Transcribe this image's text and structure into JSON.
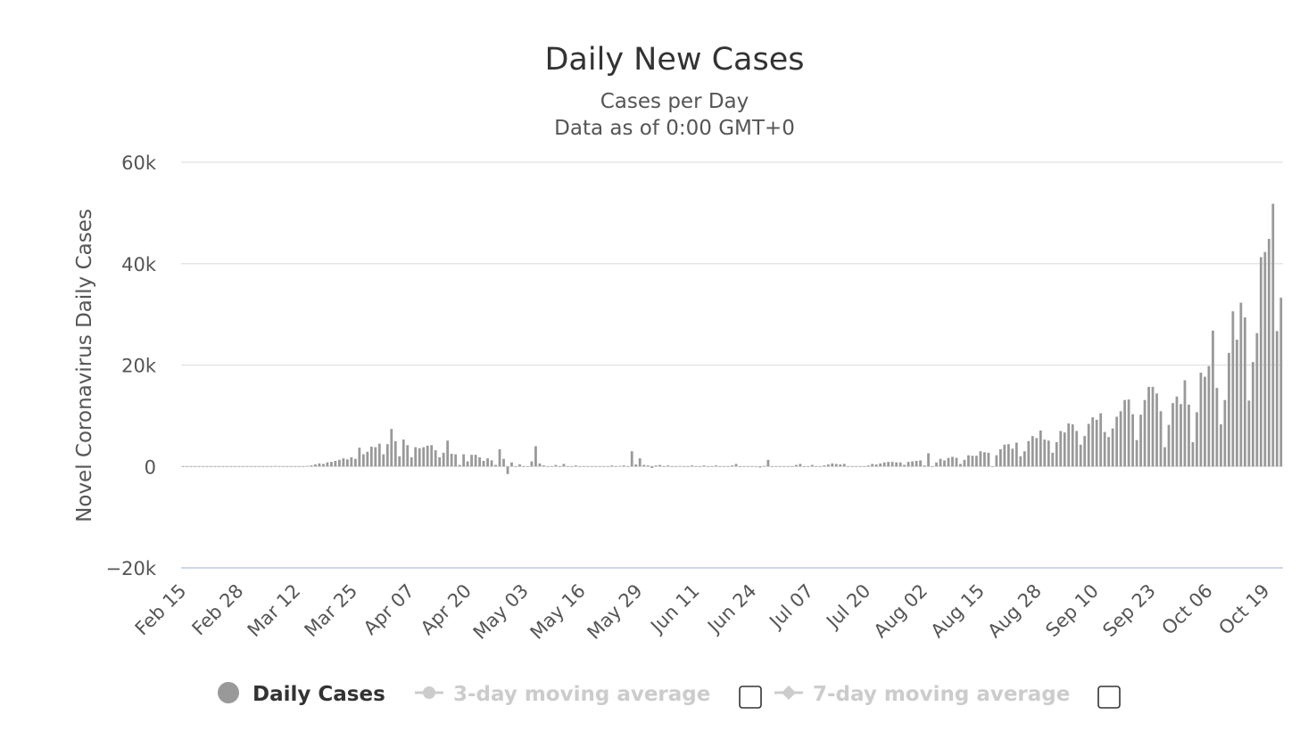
{
  "colors": {
    "bar": "#999999",
    "grid": "#e6e6e6",
    "axis_line": "#ccd6eb",
    "legend_active": "#333333",
    "legend_inactive": "#cccccc"
  },
  "chart_data": {
    "type": "bar",
    "title": "Daily New Cases",
    "subtitle_lines": [
      "Cases per Day",
      "Data as of 0:00 GMT+0"
    ],
    "xlabel": "",
    "ylabel": "Novel Coronavirus Daily Cases",
    "ylim": [
      -20000,
      60000
    ],
    "yticks": [
      -20000,
      0,
      20000,
      40000,
      60000
    ],
    "ytick_labels": [
      "−20k",
      "0",
      "20k",
      "40k",
      "60k"
    ],
    "xtick_labels": [
      "Feb 15",
      "Feb 28",
      "Mar 12",
      "Mar 25",
      "Apr 07",
      "Apr 20",
      "May 03",
      "May 16",
      "May 29",
      "Jun 11",
      "Jun 24",
      "Jul 07",
      "Jul 20",
      "Aug 02",
      "Aug 15",
      "Aug 28",
      "Sep 10",
      "Sep 23",
      "Oct 06",
      "Oct 19"
    ],
    "x_start": "Feb 15",
    "x_end": "Oct 27",
    "grid": true,
    "legend_position": "bottom",
    "legend": [
      {
        "label": "Daily Cases",
        "active": true,
        "marker": "circle"
      },
      {
        "label": "3-day moving average",
        "active": false,
        "marker": "circle-line"
      },
      {
        "label": "7-day moving average",
        "active": false,
        "marker": "diamond-line"
      }
    ],
    "series": [
      {
        "name": "Daily Cases",
        "values": [
          0,
          0,
          0,
          0,
          0,
          0,
          0,
          0,
          0,
          0,
          0,
          0,
          0,
          0,
          0,
          0,
          0,
          0,
          0,
          0,
          0,
          0,
          0,
          100,
          0,
          0,
          0,
          0,
          0,
          0,
          50,
          100,
          200,
          400,
          600,
          500,
          800,
          900,
          1100,
          1300,
          1600,
          1400,
          1800,
          1500,
          3700,
          2400,
          2900,
          3900,
          3800,
          4500,
          2400,
          4400,
          7400,
          5000,
          2000,
          5300,
          4200,
          1800,
          3800,
          3600,
          3800,
          4100,
          4200,
          3200,
          1800,
          2700,
          5100,
          2500,
          2400,
          300,
          2400,
          1000,
          2300,
          2300,
          1800,
          1100,
          1600,
          1200,
          300,
          3400,
          1500,
          -1500,
          800,
          0,
          400,
          0,
          0,
          1000,
          4000,
          600,
          200,
          0,
          0,
          300,
          0,
          500,
          0,
          0,
          200,
          0,
          0,
          0,
          0,
          0,
          0,
          0,
          0,
          200,
          0,
          100,
          200,
          0,
          3000,
          400,
          1600,
          300,
          200,
          -300,
          200,
          300,
          0,
          200,
          0,
          0,
          100,
          0,
          0,
          200,
          0,
          0,
          200,
          0,
          0,
          200,
          0,
          0,
          0,
          200,
          500,
          0,
          0,
          0,
          0,
          0,
          -200,
          100,
          1300,
          0,
          0,
          0,
          0,
          0,
          0,
          300,
          500,
          0,
          0,
          300,
          0,
          0,
          200,
          400,
          600,
          500,
          400,
          500,
          0,
          0,
          0,
          0,
          0,
          200,
          500,
          400,
          600,
          800,
          900,
          900,
          800,
          800,
          300,
          900,
          1000,
          1100,
          1200,
          200,
          2600,
          0,
          800,
          1500,
          1200,
          1700,
          1900,
          1700,
          500,
          1300,
          2200,
          2100,
          2100,
          3000,
          2800,
          2700,
          0,
          2200,
          3400,
          4300,
          4400,
          3500,
          4700,
          2000,
          3000,
          5000,
          6000,
          5600,
          7100,
          5300,
          5100,
          2700,
          4800,
          7000,
          6700,
          8500,
          8300,
          7000,
          4300,
          6000,
          8400,
          9700,
          9200,
          10500,
          6800,
          5800,
          7500,
          9800,
          10900,
          13100,
          13200,
          10300,
          5200,
          10200,
          13100,
          15700,
          15700,
          14400,
          10900,
          3800,
          8200,
          12500,
          13800,
          12300,
          17000,
          12200,
          4800,
          10700,
          18500,
          17700,
          19800,
          26800,
          15500,
          8300,
          13100,
          22400,
          30600,
          25000,
          32300,
          29400,
          13000,
          20600,
          26300,
          41300,
          42300,
          44900,
          51800,
          26700,
          33300
        ]
      }
    ]
  }
}
